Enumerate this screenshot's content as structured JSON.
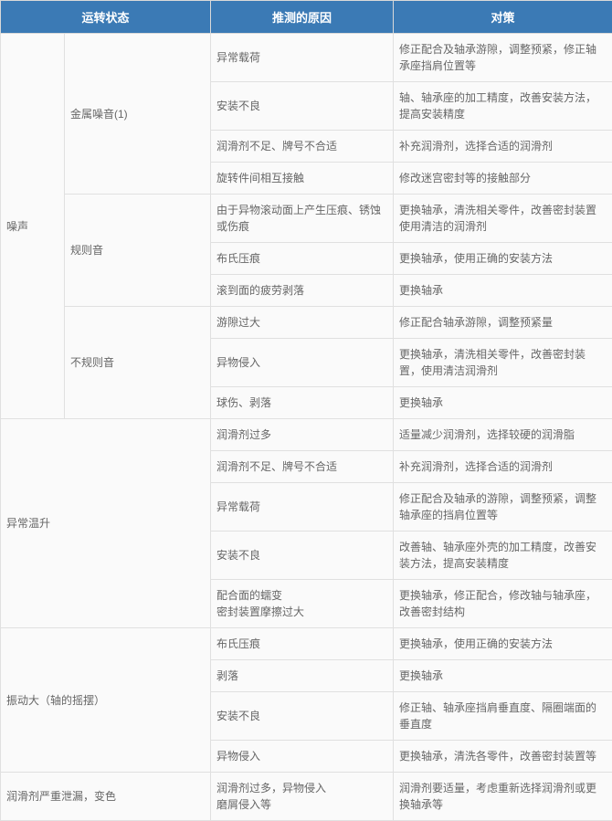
{
  "headers": {
    "status": "运转状态",
    "cause": "推测的原因",
    "measure": "对策"
  },
  "rows": [
    {
      "a": "噪声",
      "a_rowspan": 10,
      "b": "金属噪音(1)",
      "b_rowspan": 4,
      "c": "异常载荷",
      "d": "修正配合及轴承游隙，调整预紧，修正轴承座挡肩位置等"
    },
    {
      "c": "安装不良",
      "d": "轴、轴承座的加工精度，改善安装方法，提高安装精度"
    },
    {
      "c": "润滑剂不足、牌号不合适",
      "d": "补充润滑剂，选择合适的润滑剂"
    },
    {
      "c": "旋转件间相互接触",
      "d": "修改迷宫密封等的接触部分"
    },
    {
      "b": "规则音",
      "b_rowspan": 3,
      "c": "由于异物滚动面上产生压痕、锈蚀或伤痕",
      "d": "更换轴承，清洗相关零件，改善密封装置使用清洁的润滑剂"
    },
    {
      "c": "布氏压痕",
      "d": "更换轴承，使用正确的安装方法"
    },
    {
      "c": "滚到面的疲劳剥落",
      "d": "更换轴承"
    },
    {
      "b": "不规则音",
      "b_rowspan": 3,
      "c": "游隙过大",
      "d": "修正配合轴承游隙，调整预紧量"
    },
    {
      "c": "异物侵入",
      "d": "更换轴承，清洗相关零件，改善密封装置，使用清洁润滑剂"
    },
    {
      "c": "球伤、剥落",
      "d": "更换轴承"
    },
    {
      "a": "异常温升",
      "a_rowspan": 5,
      "a_colspan": 2,
      "c": "润滑剂过多",
      "d": "适量减少润滑剂，选择较硬的润滑脂"
    },
    {
      "c": "润滑剂不足、牌号不合适",
      "d": "补充润滑剂，选择合适的润滑剂"
    },
    {
      "c": "异常载荷",
      "d": "修正配合及轴承的游隙，调整预紧，调整轴承座的挡肩位置等"
    },
    {
      "c": "安装不良",
      "d": "改善轴、轴承座外壳的加工精度，改善安装方法，提高安装精度"
    },
    {
      "c": "配合面的蠕变\n密封装置摩擦过大",
      "d": "更换轴承，修正配合，修改轴与轴承座，改善密封结构"
    },
    {
      "a": "振动大（轴的摇摆）",
      "a_rowspan": 4,
      "a_colspan": 2,
      "c": "布氏压痕",
      "d": "更换轴承，使用正确的安装方法"
    },
    {
      "c": "剥落",
      "d": "更换轴承"
    },
    {
      "c": "安装不良",
      "d": "修正轴、轴承座挡肩垂直度、隔圈端面的垂直度"
    },
    {
      "c": "异物侵入",
      "d": "更换轴承，清洗各零件，改善密封装置等"
    },
    {
      "a": "润滑剂严重泄漏，变色",
      "a_rowspan": 1,
      "a_colspan": 2,
      "c": "润滑剂过多，异物侵入\n磨屑侵入等",
      "d": "润滑剂要适量，考虑重新选择润滑剂或更换轴承等"
    }
  ]
}
